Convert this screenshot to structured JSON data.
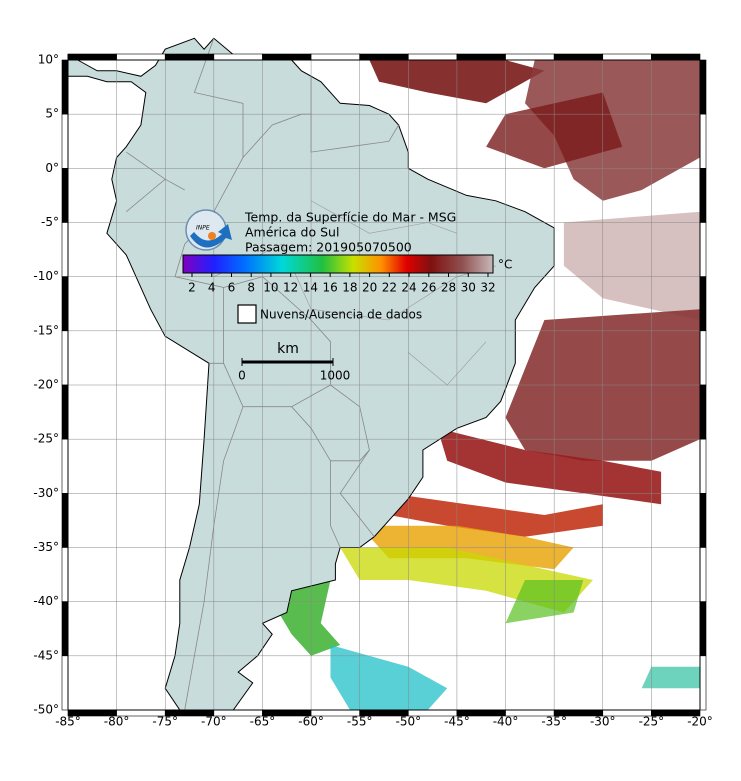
{
  "map": {
    "title": "Temp. da Superfície do Mar - MSG",
    "region": "América do Sul",
    "pass": "Passagem: 201905070500",
    "colorbar": {
      "unit": "°C",
      "ticks": [
        2,
        4,
        6,
        8,
        10,
        12,
        14,
        16,
        18,
        20,
        22,
        24,
        26,
        28,
        30,
        32
      ]
    },
    "legend": "Nuvens/Ausencia de dados",
    "scale": {
      "unit": "km",
      "labels": [
        0,
        1000
      ]
    },
    "lon_ticks": [
      {
        "value": -85,
        "label": "-85°"
      },
      {
        "value": -80,
        "label": "-80°"
      },
      {
        "value": -75,
        "label": "-75°"
      },
      {
        "value": -70,
        "label": "-70°"
      },
      {
        "value": -65,
        "label": "-65°"
      },
      {
        "value": -60,
        "label": "-60°"
      },
      {
        "value": -55,
        "label": "-55°"
      },
      {
        "value": -50,
        "label": "-50°"
      },
      {
        "value": -45,
        "label": "-45°"
      },
      {
        "value": -40,
        "label": "-40°"
      },
      {
        "value": -35,
        "label": "-35°"
      },
      {
        "value": -30,
        "label": "-30°"
      },
      {
        "value": -25,
        "label": "-25°"
      },
      {
        "value": -20,
        "label": "-20°"
      }
    ],
    "lat_ticks": [
      {
        "value": 10,
        "label": "10°"
      },
      {
        "value": 5,
        "label": "5°"
      },
      {
        "value": 0,
        "label": "0°"
      },
      {
        "value": -5,
        "label": "-5°"
      },
      {
        "value": -10,
        "label": "-10°"
      },
      {
        "value": -15,
        "label": "-15°"
      },
      {
        "value": -20,
        "label": "-20°"
      },
      {
        "value": -25,
        "label": "-25°"
      },
      {
        "value": -30,
        "label": "-30°"
      },
      {
        "value": -35,
        "label": "-35°"
      },
      {
        "value": -40,
        "label": "-40°"
      },
      {
        "value": -45,
        "label": "-45°"
      },
      {
        "value": -50,
        "label": "-50°"
      }
    ]
  }
}
